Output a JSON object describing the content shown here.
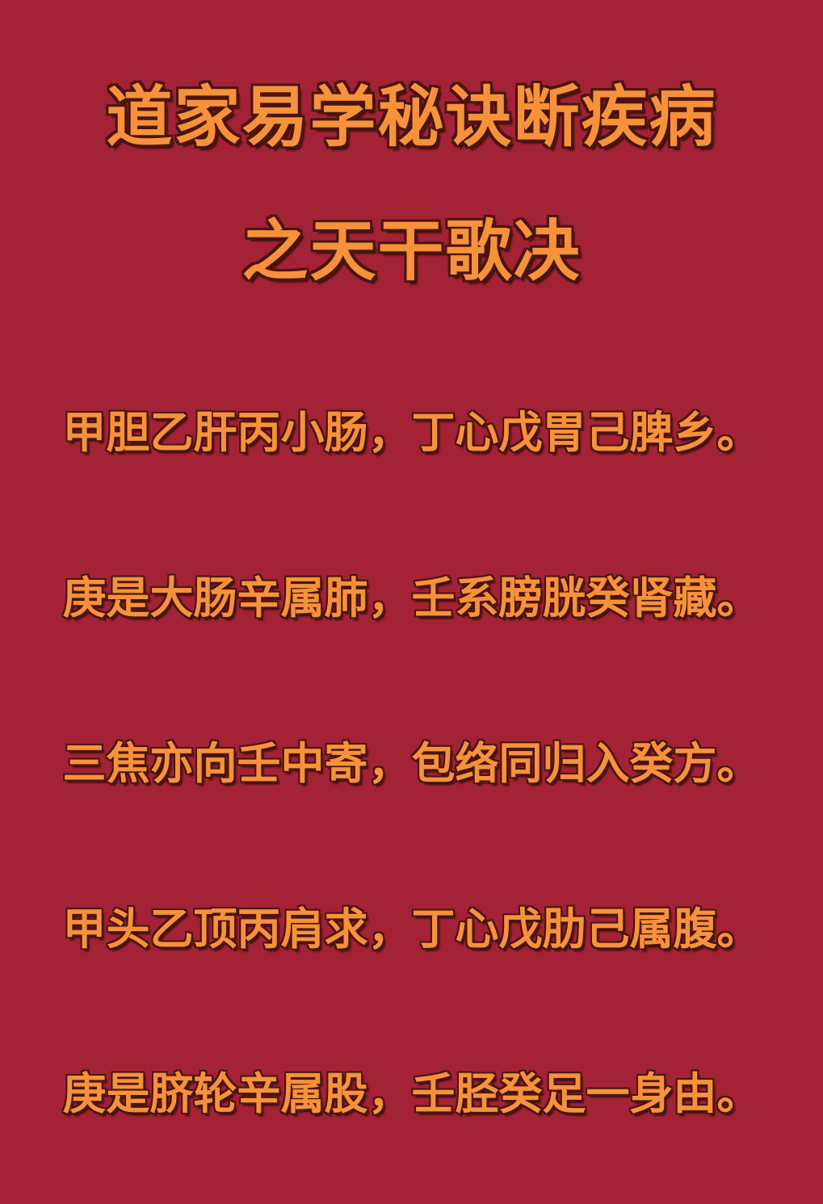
{
  "colors": {
    "background": "#a32235",
    "text_fill": "#f7923a",
    "text_outline": "#4a1510"
  },
  "title": {
    "line1": "道家易学秘诀断疾病",
    "line2": "之天干歌决"
  },
  "verses": [
    "甲胆乙肝丙小肠，丁心戊胃己脾乡。",
    "庚是大肠辛属肺，壬系膀胱癸肾藏。",
    "三焦亦向壬中寄，包络同归入癸方。",
    "甲头乙顶丙肩求，丁心戊肋己属腹。",
    "庚是脐轮辛属股，壬胫癸足一身由。"
  ]
}
